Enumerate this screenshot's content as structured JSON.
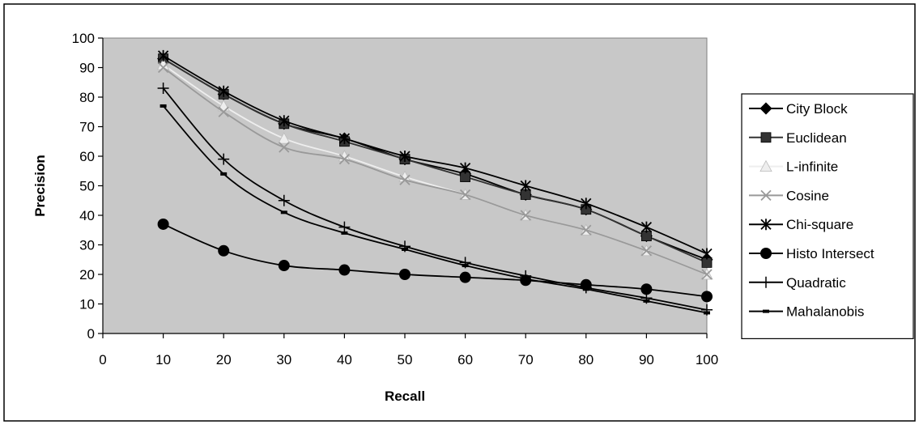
{
  "chart_data": {
    "type": "line",
    "title": "",
    "xlabel": "Recall",
    "ylabel": "Precision",
    "xlim": [
      0,
      100
    ],
    "ylim": [
      0,
      100
    ],
    "x": [
      10,
      20,
      30,
      40,
      50,
      60,
      70,
      80,
      90,
      100
    ],
    "x_ticks": [
      "0",
      "10",
      "20",
      "30",
      "40",
      "50",
      "60",
      "70",
      "80",
      "90",
      "100"
    ],
    "y_ticks": [
      "0",
      "10",
      "20",
      "30",
      "40",
      "50",
      "60",
      "70",
      "80",
      "90",
      "100"
    ],
    "grid": false,
    "legend_position": "right",
    "plot_background": "#c8c8c8",
    "series": [
      {
        "name": "City Block",
        "marker": "diamond",
        "color": "#000000",
        "values": [
          93,
          81,
          71,
          66,
          59,
          54,
          47,
          42,
          33,
          25
        ]
      },
      {
        "name": "Euclidean",
        "marker": "square",
        "color": "#333333",
        "values": [
          93,
          81,
          71,
          65,
          59,
          53,
          47,
          42,
          33,
          24
        ]
      },
      {
        "name": "L-infinite",
        "marker": "triangle",
        "color": "#eeeeee",
        "values": [
          91,
          77,
          66,
          60,
          53,
          47,
          40,
          35,
          28,
          20
        ]
      },
      {
        "name": "Cosine",
        "marker": "x",
        "color": "#999999",
        "values": [
          90,
          75,
          63,
          59,
          52,
          47,
          40,
          35,
          28,
          20
        ]
      },
      {
        "name": "Chi-square",
        "marker": "star",
        "color": "#000000",
        "values": [
          94,
          82,
          72,
          66,
          60,
          56,
          50,
          44,
          36,
          27
        ]
      },
      {
        "name": "Histo Intersect",
        "marker": "circle",
        "color": "#000000",
        "values": [
          37,
          28,
          23,
          21.5,
          20,
          19,
          18,
          16.5,
          15,
          12.5
        ]
      },
      {
        "name": "Quadratic",
        "marker": "plus",
        "color": "#000000",
        "values": [
          83,
          59,
          45,
          36,
          29.5,
          24,
          19.5,
          15.5,
          12,
          8
        ]
      },
      {
        "name": "Mahalanobis",
        "marker": "dash",
        "color": "#000000",
        "values": [
          77,
          54,
          41,
          34,
          28.5,
          23,
          18.5,
          15,
          11,
          7
        ]
      }
    ]
  }
}
